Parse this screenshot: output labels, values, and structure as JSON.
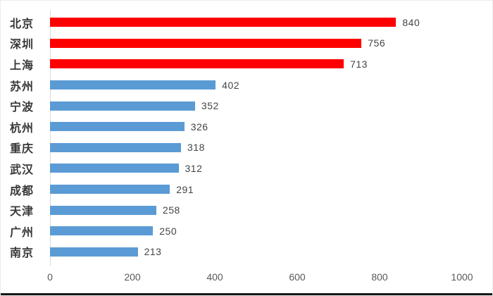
{
  "chart_data": {
    "type": "bar",
    "orientation": "horizontal",
    "title": "",
    "xlabel": "",
    "ylabel": "",
    "categories": [
      "北京",
      "深圳",
      "上海",
      "苏州",
      "宁波",
      "杭州",
      "重庆",
      "武汉",
      "成都",
      "天津",
      "广州",
      "南京"
    ],
    "values": [
      840,
      756,
      713,
      402,
      352,
      326,
      318,
      312,
      291,
      258,
      250,
      213
    ],
    "data_labels": [
      "840",
      "756",
      "713",
      "402",
      "352",
      "326",
      "318",
      "312",
      "291",
      "258",
      "250",
      "213"
    ],
    "highlight_count": 3,
    "xlim": [
      0,
      1000
    ],
    "x_ticks": [
      "0",
      "200",
      "400",
      "600",
      "800",
      "1000"
    ],
    "x_tick_values": [
      0,
      200,
      400,
      600,
      800,
      1000
    ],
    "grid": false,
    "legend": false,
    "colors": {
      "highlight_bar": "#fe0000",
      "default_bar": "#5b9bd5",
      "axis_line": "#d9d9d9",
      "category_text": "#383838",
      "value_text": "#444444",
      "tick_text": "#595959"
    }
  }
}
